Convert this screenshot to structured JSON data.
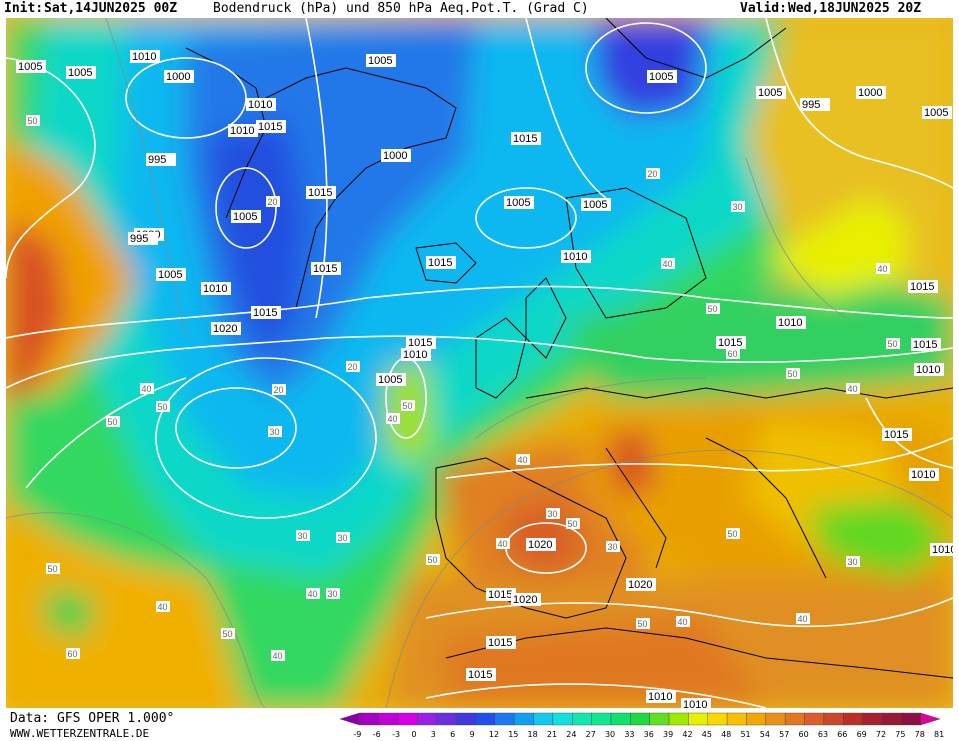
{
  "header": {
    "init_label": "Init:",
    "init_value": "Sat,14JUN2025 00Z",
    "title": "Bodendruck (hPa) und 850 hPa Aeq.Pot.T. (Grad C)",
    "valid_label": "Valid:",
    "valid_value": "Wed,18JUN2025 20Z"
  },
  "footer": {
    "data_source": "Data: GFS OPER 1.000°",
    "website": "WWW.WETTERZENTRALE.DE"
  },
  "legend": {
    "values": [
      "-9",
      "-6",
      "-3",
      "0",
      "3",
      "6",
      "9",
      "12",
      "15",
      "18",
      "21",
      "24",
      "27",
      "30",
      "33",
      "36",
      "39",
      "42",
      "45",
      "48",
      "51",
      "54",
      "57",
      "60",
      "63",
      "66",
      "69",
      "72",
      "75",
      "78",
      "81"
    ],
    "colors": [
      "#8a00a8",
      "#a400c0",
      "#c000d8",
      "#d800e8",
      "#9a20e8",
      "#6a30e0",
      "#4038e0",
      "#2050e8",
      "#1a78f0",
      "#10a0f0",
      "#10c8f0",
      "#10e0e0",
      "#10e8b0",
      "#10e890",
      "#10e070",
      "#20d840",
      "#60e020",
      "#a0e800",
      "#e8f000",
      "#f8d800",
      "#f8c000",
      "#f0a800",
      "#e89018",
      "#e07820",
      "#d86028",
      "#c84828",
      "#b83028",
      "#a82030",
      "#981838",
      "#8a1040",
      "#e000a0"
    ]
  },
  "map": {
    "pressure_labels": [
      "1010",
      "1005",
      "1000",
      "1005",
      "995",
      "1000",
      "995",
      "1005",
      "1005",
      "1010",
      "1015",
      "1020",
      "1020",
      "1015",
      "1010",
      "1005",
      "1000",
      "1015",
      "1010",
      "1005",
      "1005",
      "1005",
      "1010",
      "1015",
      "1015",
      "1010",
      "1005",
      "1015",
      "1015",
      "1020",
      "1020",
      "1015",
      "1020",
      "1015",
      "1015",
      "1010",
      "1010",
      "1015",
      "1010",
      "1015",
      "1015",
      "1010",
      "1015",
      "1010",
      "1010",
      "1005",
      "995",
      "1000",
      "1005"
    ],
    "thetae_labels": [
      "50",
      "40",
      "30",
      "20",
      "30",
      "20",
      "50",
      "40",
      "30",
      "20",
      "50",
      "40",
      "50",
      "40",
      "30",
      "50",
      "60",
      "50",
      "40",
      "50",
      "40",
      "30",
      "50",
      "40",
      "30",
      "50",
      "40",
      "50",
      "40",
      "30",
      "20",
      "30",
      "40",
      "50",
      "60",
      "50",
      "40",
      "50",
      "40"
    ]
  }
}
